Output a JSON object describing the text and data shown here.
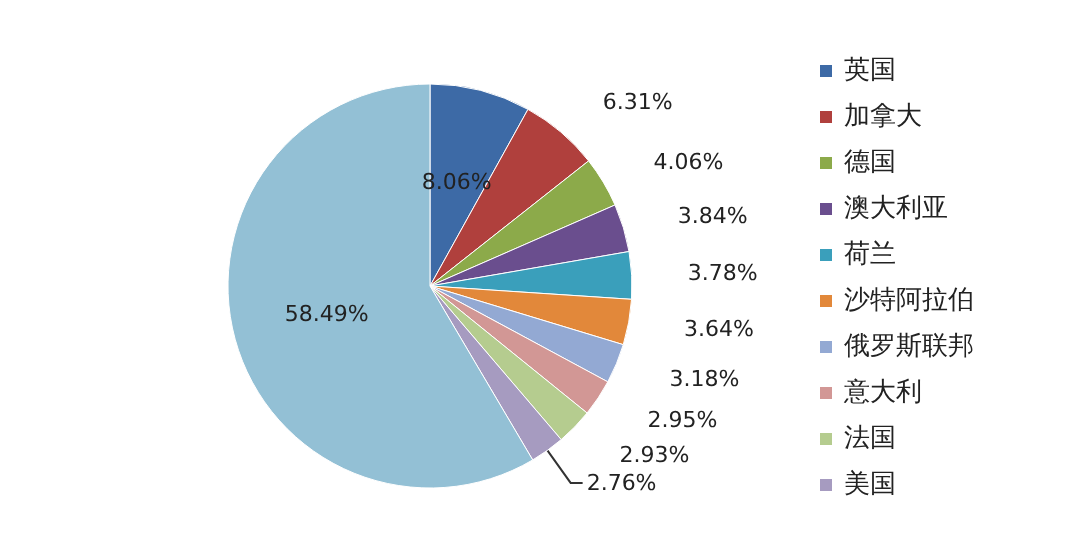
{
  "chart_data": {
    "type": "pie",
    "categories": [
      "英国",
      "加拿大",
      "德国",
      "澳大利亚",
      "荷兰",
      "沙特阿拉伯",
      "俄罗斯联邦",
      "意大利",
      "法国",
      "美国",
      null
    ],
    "values": [
      8.06,
      6.31,
      4.06,
      3.84,
      3.78,
      3.64,
      3.18,
      2.95,
      2.93,
      2.76,
      58.49
    ],
    "value_labels": [
      "8.06%",
      "6.31%",
      "4.06%",
      "3.84%",
      "3.78%",
      "3.64%",
      "3.18%",
      "2.95%",
      "2.93%",
      "2.76%",
      "58.49%"
    ],
    "colors": [
      "#3d6aa6",
      "#b0403d",
      "#8caa4a",
      "#6a4e8e",
      "#3a9fbb",
      "#e2883a",
      "#93a9d3",
      "#d29795",
      "#b5cc8f",
      "#a69bc0",
      "#93c0d5"
    ],
    "legend": "right"
  }
}
